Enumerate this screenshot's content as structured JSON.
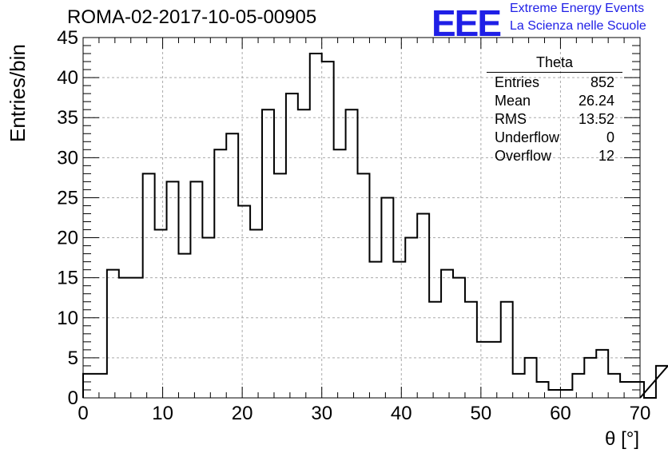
{
  "title": "ROMA-02-2017-10-05-00905",
  "logo": {
    "text": "EEE",
    "line1": "Extreme Energy Events",
    "line2": "La Scienza nelle Scuole",
    "color": "#1f1fe6"
  },
  "stats": {
    "header": "Theta",
    "rows": [
      {
        "label": "Entries",
        "value": "852"
      },
      {
        "label": "Mean",
        "value": "26.24"
      },
      {
        "label": "RMS",
        "value": "13.52"
      },
      {
        "label": "Underflow",
        "value": "0"
      },
      {
        "label": "Overflow",
        "value": "12"
      }
    ]
  },
  "chart_data": {
    "type": "bar",
    "style": "step histogram",
    "xlabel": "θ [°]",
    "ylabel": "Entries/bin",
    "xlim": [
      0,
      70
    ],
    "ylim": [
      0,
      45
    ],
    "xticks": [
      0,
      10,
      20,
      30,
      40,
      50,
      60,
      70
    ],
    "yticks": [
      0,
      5,
      10,
      15,
      20,
      25,
      30,
      35,
      40,
      45
    ],
    "grid": true,
    "bin_width": 1.5,
    "bin_edges_start": 0,
    "values": [
      3,
      3,
      16,
      15,
      15,
      28,
      21,
      27,
      18,
      27,
      20,
      31,
      33,
      24,
      21,
      36,
      28,
      38,
      36,
      43,
      42,
      31,
      36,
      28,
      17,
      25,
      17,
      20,
      23,
      12,
      16,
      15,
      12,
      7,
      7,
      12,
      3,
      5,
      2,
      1,
      1,
      3,
      5,
      6,
      3,
      2,
      2,
      0,
      4
    ]
  }
}
